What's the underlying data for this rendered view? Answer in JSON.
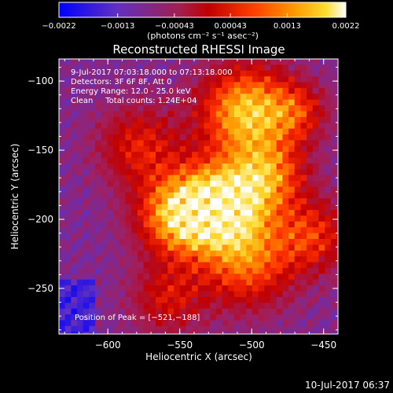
{
  "chart_data": {
    "type": "heatmap",
    "title": "Reconstructed RHESSI Image",
    "xlabel": "Heliocentric X (arcsec)",
    "ylabel": "Heliocentric Y (arcsec)",
    "xlim": [
      -634,
      -440
    ],
    "ylim": [
      -283,
      -84
    ],
    "xticks": [
      {
        "value": -600,
        "label": "−600"
      },
      {
        "value": -550,
        "label": "−550"
      },
      {
        "value": -500,
        "label": "−500"
      },
      {
        "value": -450,
        "label": "−450"
      }
    ],
    "yticks": [
      {
        "value": -100,
        "label": "−100"
      },
      {
        "value": -150,
        "label": "−150"
      },
      {
        "value": -200,
        "label": "−200"
      },
      {
        "value": -250,
        "label": "−250"
      }
    ],
    "colorbar": {
      "range": [
        -0.0022,
        0.0022
      ],
      "ticks": [
        {
          "value": -0.0022,
          "label": "−0.0022"
        },
        {
          "value": -0.0013,
          "label": "−0.0013"
        },
        {
          "value": -0.00043,
          "label": "−0.00043"
        },
        {
          "value": 0.00043,
          "label": "0.00043"
        },
        {
          "value": 0.0013,
          "label": "0.0013"
        },
        {
          "value": 0.0022,
          "label": "0.0022"
        }
      ],
      "unit_label": "(photons cm⁻² s⁻¹ asec⁻²)"
    },
    "annotations": [
      "9-Jul-2017 07:03:18.000 to 07:13:18.000",
      "Detectors: 3F 6F 8F, Att 0",
      "Energy Range: 12.0 - 25.0 keV",
      "Clean     Total counts: 1.24E+04"
    ],
    "peak": {
      "x": -521,
      "y": -188,
      "label": "Position of Peak = [−521,−188]"
    },
    "colors": {
      "palette": [
        "#0000ff",
        "#6030c0",
        "#a02060",
        "#c00000",
        "#ff3000",
        "#ff9000",
        "#ffdc30",
        "#ffffff"
      ]
    }
  },
  "footer": {
    "timestamp": "10-Jul-2017 06:37"
  }
}
